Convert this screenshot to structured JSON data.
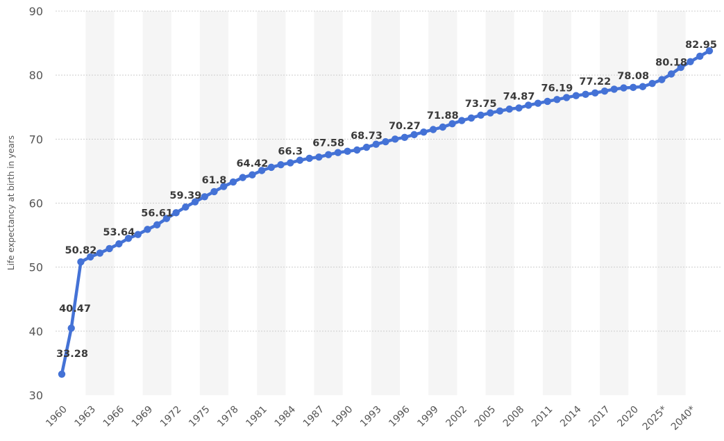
{
  "chart_data": {
    "type": "line",
    "ylabel": "Life expectancy at birth in years",
    "ylim": [
      30,
      90
    ],
    "yticks": [
      30,
      40,
      50,
      60,
      70,
      80,
      90
    ],
    "grid": true,
    "line_color": "#4472d6",
    "band_color": "#f5f5f5",
    "grid_color": "#cccccc",
    "x": [
      "1960",
      "1961",
      "1962",
      "1963",
      "1964",
      "1965",
      "1966",
      "1967",
      "1968",
      "1969",
      "1970",
      "1971",
      "1972",
      "1973",
      "1974",
      "1975",
      "1976",
      "1977",
      "1978",
      "1979",
      "1980",
      "1981",
      "1982",
      "1983",
      "1984",
      "1985",
      "1986",
      "1987",
      "1988",
      "1989",
      "1990",
      "1991",
      "1992",
      "1993",
      "1994",
      "1995",
      "1996",
      "1997",
      "1998",
      "1999",
      "2000",
      "2001",
      "2002",
      "2003",
      "2004",
      "2005",
      "2006",
      "2007",
      "2008",
      "2009",
      "2010",
      "2011",
      "2012",
      "2013",
      "2014",
      "2015",
      "2016",
      "2017",
      "2018",
      "2019",
      "2020",
      "2021",
      "2022",
      "2025*",
      "2030*",
      "2035*",
      "2040*",
      "2045*",
      "2050*"
    ],
    "xtick_labels": [
      "1960",
      "1963",
      "1966",
      "1969",
      "1972",
      "1975",
      "1978",
      "1981",
      "1984",
      "1987",
      "1990",
      "1993",
      "1996",
      "1999",
      "2002",
      "2005",
      "2008",
      "2011",
      "2014",
      "2017",
      "2020",
      "2025*",
      "2040*"
    ],
    "values": [
      33.28,
      40.47,
      50.82,
      51.6,
      52.2,
      52.9,
      53.64,
      54.5,
      55.1,
      55.9,
      56.61,
      57.6,
      58.5,
      59.39,
      60.2,
      61.0,
      61.8,
      62.6,
      63.3,
      64.0,
      64.42,
      65.1,
      65.6,
      66.0,
      66.3,
      66.7,
      67.0,
      67.2,
      67.58,
      67.9,
      68.1,
      68.3,
      68.73,
      69.2,
      69.6,
      70.0,
      70.27,
      70.7,
      71.1,
      71.5,
      71.88,
      72.4,
      72.9,
      73.3,
      73.75,
      74.1,
      74.4,
      74.7,
      74.87,
      75.3,
      75.6,
      75.9,
      76.19,
      76.5,
      76.8,
      77.0,
      77.22,
      77.5,
      77.8,
      78.0,
      78.08,
      78.2,
      78.7,
      79.3,
      80.18,
      81.2,
      82.1,
      82.95,
      83.8
    ],
    "data_labels": [
      {
        "index": 0,
        "text": "33.28"
      },
      {
        "index": 1,
        "text": "40.47"
      },
      {
        "index": 2,
        "text": "50.82"
      },
      {
        "index": 6,
        "text": "53.64"
      },
      {
        "index": 10,
        "text": "56.61"
      },
      {
        "index": 13,
        "text": "59.39"
      },
      {
        "index": 16,
        "text": "61.8"
      },
      {
        "index": 20,
        "text": "64.42"
      },
      {
        "index": 24,
        "text": "66.3"
      },
      {
        "index": 28,
        "text": "67.58"
      },
      {
        "index": 32,
        "text": "68.73"
      },
      {
        "index": 36,
        "text": "70.27"
      },
      {
        "index": 40,
        "text": "71.88"
      },
      {
        "index": 44,
        "text": "73.75"
      },
      {
        "index": 48,
        "text": "74.87"
      },
      {
        "index": 52,
        "text": "76.19"
      },
      {
        "index": 56,
        "text": "77.22"
      },
      {
        "index": 60,
        "text": "78.08"
      },
      {
        "index": 64,
        "text": "80.18"
      },
      {
        "index": 67,
        "text": "82.95"
      }
    ]
  }
}
